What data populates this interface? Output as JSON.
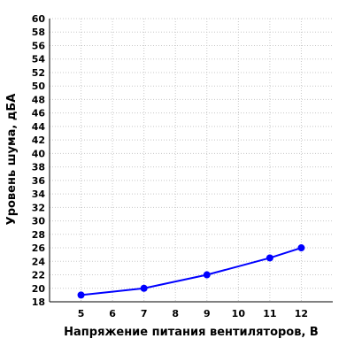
{
  "chart_data": {
    "type": "line",
    "title": "",
    "xlabel": "Напряжение питания вентиляторов, В",
    "ylabel": "Уровень шума, дБА",
    "xlim": [
      4,
      13
    ],
    "ylim": [
      18,
      60
    ],
    "x_ticks": [
      5,
      6,
      7,
      8,
      9,
      10,
      11,
      12
    ],
    "x_tick_labels": [
      "5",
      "6",
      "7",
      "8",
      "9",
      "10",
      "11",
      "12"
    ],
    "y_ticks": [
      18,
      20,
      22,
      24,
      26,
      28,
      30,
      32,
      34,
      36,
      38,
      40,
      42,
      44,
      46,
      48,
      50,
      52,
      54,
      56,
      58,
      60
    ],
    "y_tick_labels": [
      "18",
      "20",
      "22",
      "24",
      "26",
      "28",
      "30",
      "32",
      "34",
      "36",
      "38",
      "40",
      "42",
      "44",
      "46",
      "48",
      "50",
      "52",
      "54",
      "56",
      "58",
      "60"
    ],
    "grid": true,
    "legend": "none",
    "series": [
      {
        "x": [
          5,
          7,
          9,
          11,
          12
        ],
        "y": [
          19,
          20,
          22,
          24.5,
          26
        ],
        "color": "#0000ff"
      }
    ]
  }
}
